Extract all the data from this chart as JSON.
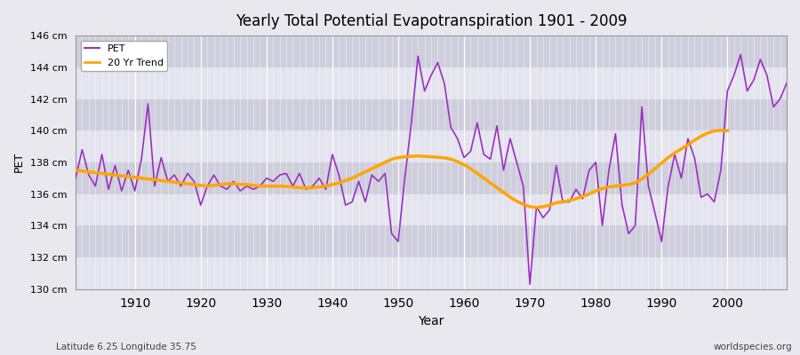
{
  "title": "Yearly Total Potential Evapotranspiration 1901 - 2009",
  "xlabel": "Year",
  "ylabel": "PET",
  "footnote_left": "Latitude 6.25 Longitude 35.75",
  "footnote_right": "worldspecies.org",
  "pet_color": "#9B30C0",
  "trend_color": "#FFA500",
  "background_color": "#E8E8EE",
  "plot_bg_color": "#D8D8E4",
  "band_color_light": "#E4E4EE",
  "band_color_dark": "#CECEDD",
  "grid_color": "#FFFFFF",
  "ylim": [
    130,
    146
  ],
  "ytick_labels": [
    "130 cm",
    "132 cm",
    "134 cm",
    "136 cm",
    "138 cm",
    "140 cm",
    "142 cm",
    "144 cm",
    "146 cm"
  ],
  "ytick_values": [
    130,
    132,
    134,
    136,
    138,
    140,
    142,
    144,
    146
  ],
  "xlim_left": 1901,
  "xlim_right": 2009,
  "xtick_start": 1910,
  "xtick_end": 2000,
  "xtick_step": 10,
  "years": [
    1901,
    1902,
    1903,
    1904,
    1905,
    1906,
    1907,
    1908,
    1909,
    1910,
    1911,
    1912,
    1913,
    1914,
    1915,
    1916,
    1917,
    1918,
    1919,
    1920,
    1921,
    1922,
    1923,
    1924,
    1925,
    1926,
    1927,
    1928,
    1929,
    1930,
    1931,
    1932,
    1933,
    1934,
    1935,
    1936,
    1937,
    1938,
    1939,
    1940,
    1941,
    1942,
    1943,
    1944,
    1945,
    1946,
    1947,
    1948,
    1949,
    1950,
    1951,
    1952,
    1953,
    1954,
    1955,
    1956,
    1957,
    1958,
    1959,
    1960,
    1961,
    1962,
    1963,
    1964,
    1965,
    1966,
    1967,
    1968,
    1969,
    1970,
    1971,
    1972,
    1973,
    1974,
    1975,
    1976,
    1977,
    1978,
    1979,
    1980,
    1981,
    1982,
    1983,
    1984,
    1985,
    1986,
    1987,
    1988,
    1989,
    1990,
    1991,
    1992,
    1993,
    1994,
    1995,
    1996,
    1997,
    1998,
    1999,
    2000,
    2001,
    2002,
    2003,
    2004,
    2005,
    2006,
    2007,
    2008,
    2009
  ],
  "pet_values": [
    137.0,
    138.8,
    137.2,
    136.5,
    138.5,
    136.3,
    137.8,
    136.2,
    137.5,
    136.2,
    138.2,
    141.7,
    136.5,
    138.3,
    136.8,
    137.2,
    136.5,
    137.3,
    136.8,
    135.3,
    136.5,
    137.2,
    136.5,
    136.3,
    136.8,
    136.2,
    136.5,
    136.3,
    136.5,
    137.0,
    136.8,
    137.2,
    137.3,
    136.5,
    137.3,
    136.3,
    136.5,
    137.0,
    136.3,
    138.5,
    137.2,
    135.3,
    135.5,
    136.8,
    135.5,
    137.2,
    136.8,
    137.3,
    133.5,
    133.0,
    137.0,
    140.5,
    144.7,
    142.5,
    143.5,
    144.3,
    143.0,
    140.2,
    139.5,
    138.3,
    138.7,
    140.5,
    138.5,
    138.2,
    140.3,
    137.5,
    139.5,
    138.0,
    136.5,
    130.3,
    135.2,
    134.5,
    135.0,
    137.8,
    135.5,
    135.5,
    136.3,
    135.7,
    137.5,
    138.0,
    134.0,
    137.5,
    139.8,
    135.3,
    133.5,
    134.0,
    141.5,
    136.5,
    134.8,
    133.0,
    136.5,
    138.5,
    137.0,
    139.5,
    138.3,
    135.8,
    136.0,
    135.5,
    137.5,
    142.5,
    143.5,
    144.8,
    142.5,
    143.2,
    144.5,
    143.5,
    141.5,
    142.0,
    143.0
  ],
  "trend_values": [
    137.5,
    137.45,
    137.4,
    137.35,
    137.3,
    137.25,
    137.2,
    137.15,
    137.1,
    137.05,
    137.0,
    136.95,
    136.9,
    136.85,
    136.8,
    136.75,
    136.7,
    136.65,
    136.6,
    136.55,
    136.5,
    136.55,
    136.6,
    136.65,
    136.65,
    136.6,
    136.6,
    136.55,
    136.5,
    136.5,
    136.5,
    136.5,
    136.48,
    136.44,
    136.4,
    136.4,
    136.4,
    136.45,
    136.5,
    136.6,
    136.7,
    136.85,
    137.0,
    137.2,
    137.4,
    137.6,
    137.8,
    138.0,
    138.2,
    138.3,
    138.35,
    138.38,
    138.4,
    138.38,
    138.35,
    138.32,
    138.28,
    138.2,
    138.05,
    137.85,
    137.6,
    137.3,
    137.0,
    136.7,
    136.4,
    136.1,
    135.8,
    135.55,
    135.35,
    135.2,
    135.15,
    135.2,
    135.3,
    135.45,
    135.5,
    135.6,
    135.7,
    135.85,
    136.0,
    136.2,
    136.35,
    136.45,
    136.5,
    136.55,
    136.6,
    136.7,
    136.95,
    137.25,
    137.6,
    137.95,
    138.3,
    138.6,
    138.85,
    139.1,
    139.4,
    139.65,
    139.85,
    139.98,
    140.02,
    140.0,
    null,
    null,
    null,
    null,
    null,
    null,
    null,
    null,
    null
  ]
}
